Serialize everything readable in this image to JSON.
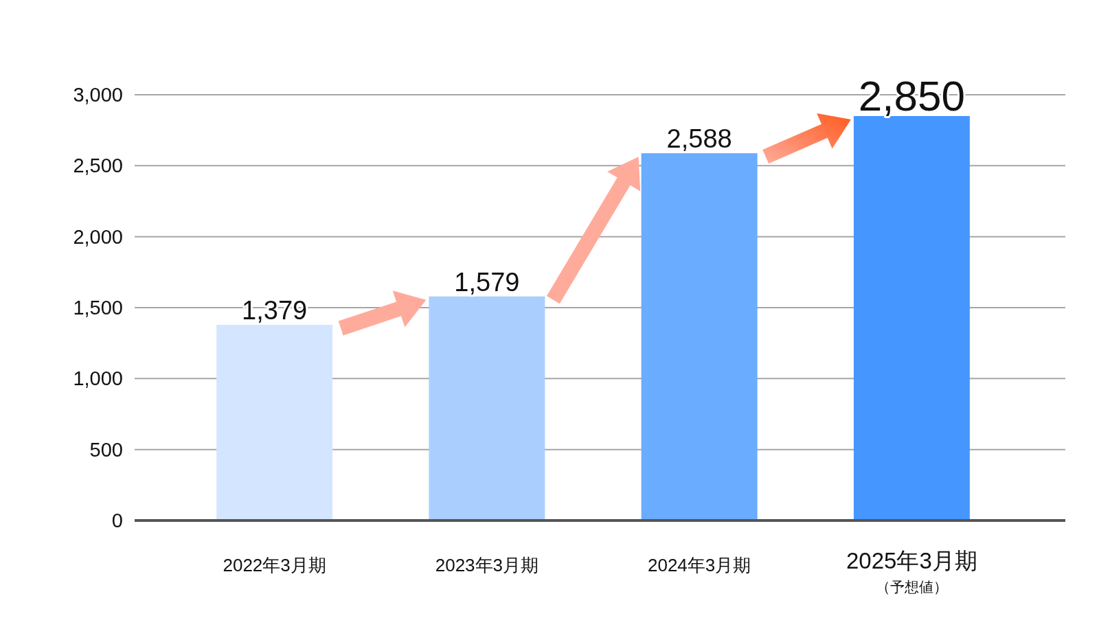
{
  "chart_data": {
    "type": "bar",
    "categories": [
      "2022年3月期",
      "2023年3月期",
      "2024年3月期",
      "2025年3月期"
    ],
    "annotations": [
      "（予想値）"
    ],
    "values": [
      1379,
      1579,
      2588,
      2850
    ],
    "value_labels": [
      "1,379",
      "1,579",
      "2,588",
      "2,850"
    ],
    "colors": [
      "#d4e6ff",
      "#aacfff",
      "#6aacff",
      "#4597ff"
    ],
    "ylim": [
      0,
      3000
    ],
    "yticks": [
      0,
      500,
      {
        "value": 1000,
        "label": "1,000"
      },
      {
        "value": 1500,
        "label": "1,500"
      },
      {
        "value": 2000,
        "label": "2,000"
      },
      {
        "value": 2500,
        "label": "2,500"
      },
      {
        "value": 3000,
        "label": "3,000"
      }
    ],
    "grid": "y"
  }
}
